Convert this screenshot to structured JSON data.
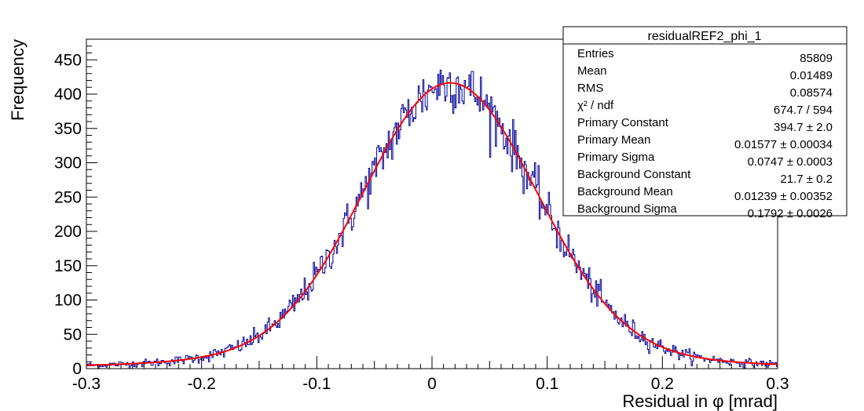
{
  "chart_data": {
    "type": "histogram",
    "title": "residualREF2_phi_1",
    "xlabel_prefix": "Residual in ",
    "xlabel_symbol": "φ",
    "xlabel_suffix": " [mrad]",
    "ylabel": "Frequency",
    "xlim": [
      -0.3,
      0.3
    ],
    "ylim": [
      0,
      480
    ],
    "x_ticks": [
      "-0.3",
      "-0.2",
      "-0.1",
      "0",
      "0.1",
      "0.2",
      "0.3"
    ],
    "x_tick_values": [
      -0.3,
      -0.2,
      -0.1,
      0,
      0.1,
      0.2,
      0.3
    ],
    "y_ticks": [
      "0",
      "50",
      "100",
      "150",
      "200",
      "250",
      "300",
      "350",
      "400",
      "450"
    ],
    "y_tick_values": [
      0,
      50,
      100,
      150,
      200,
      250,
      300,
      350,
      400,
      450
    ],
    "bins": 600,
    "histogram_color": "#000099",
    "fit_color": "#ff0000",
    "fit_model": {
      "primary_constant": 394.7,
      "primary_mean": 0.01577,
      "primary_sigma": 0.0747,
      "background_constant": 21.7,
      "background_mean": 0.01239,
      "background_sigma": 0.1792
    },
    "stats_box": {
      "title": "residualREF2_phi_1",
      "rows": [
        {
          "label": "Entries",
          "value": "85809"
        },
        {
          "label": "Mean",
          "value": "0.01489"
        },
        {
          "label": "RMS",
          "value": "0.08574"
        },
        {
          "label": "χ² / ndf",
          "value": "674.7 / 594"
        },
        {
          "label": "Primary Constant",
          "value": "394.7 ± 2.0"
        },
        {
          "label": "Primary Mean",
          "value": "0.01577 ± 0.00034"
        },
        {
          "label": "Primary Sigma",
          "value": "0.0747 ± 0.0003"
        },
        {
          "label": "Background Constant",
          "value": "21.7 ± 0.2"
        },
        {
          "label": "Background Mean",
          "value": "0.01239 ± 0.00352"
        },
        {
          "label": "Background Sigma",
          "value": "0.1792 ± 0.0026"
        }
      ]
    }
  }
}
